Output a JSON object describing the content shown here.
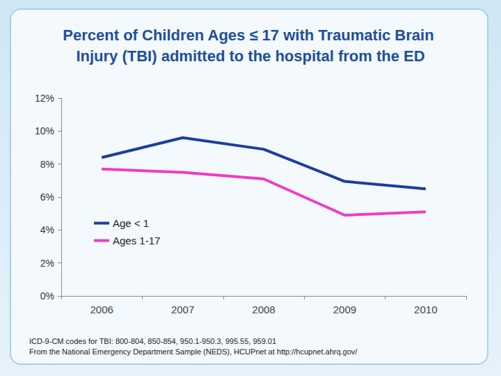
{
  "chart_data": {
    "type": "line",
    "title": "Percent of Children Ages ≤ 17 with Traumatic Brain Injury (TBI) admitted to the hospital from the ED",
    "notes": [
      "ICD-9-CM codes for TBI: 800-804, 850-854, 950.1-950.3, 995.55, 959.01",
      "From the National Emergency Department Sample (NEDS), HCUPnet at http://hcupnet.ahrq.gov/"
    ],
    "categories": [
      "2006",
      "2007",
      "2008",
      "2009",
      "2010"
    ],
    "series": [
      {
        "name": "Age < 1",
        "color": "#1f3c9e",
        "values": [
          8.4,
          9.6,
          8.9,
          6.95,
          6.5
        ]
      },
      {
        "name": "Ages 1-17",
        "color": "#f03cc3",
        "values": [
          7.7,
          7.5,
          7.1,
          4.9,
          5.1
        ]
      }
    ],
    "ylim": [
      0,
      12
    ],
    "yticks": [
      {
        "value": 0,
        "label": "0%"
      },
      {
        "value": 2,
        "label": "2%"
      },
      {
        "value": 4,
        "label": "4%"
      },
      {
        "value": 6,
        "label": "6%"
      },
      {
        "value": 8,
        "label": "8%"
      },
      {
        "value": 10,
        "label": "10%"
      },
      {
        "value": 12,
        "label": "12%"
      }
    ],
    "grid": false,
    "legend": "left"
  }
}
